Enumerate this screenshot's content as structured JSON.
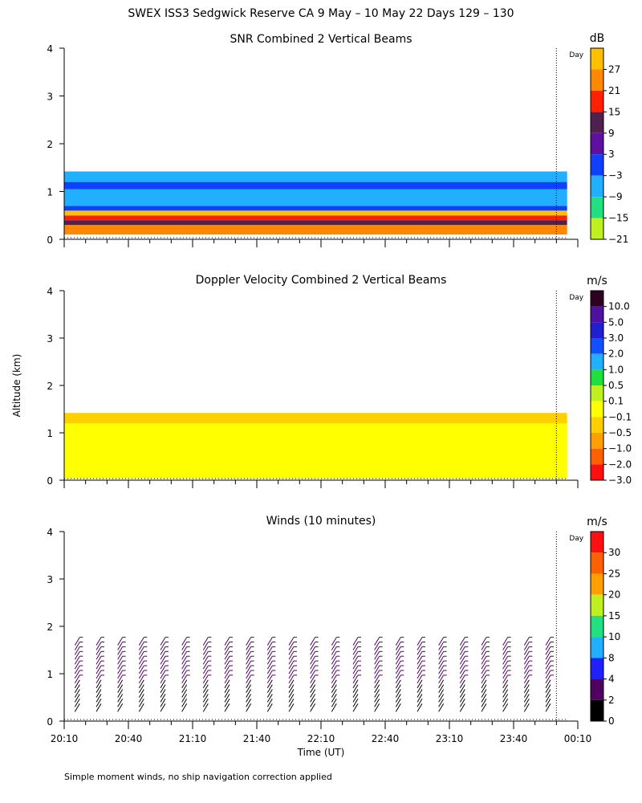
{
  "header": {
    "title": "SWEX ISS3 Sedgwick Reserve CA   9 May – 10 May 22 Days 129 – 130",
    "ylabel": "Altitude (km)",
    "xlabel": "Time (UT)",
    "footnote": "Simple moment winds, no ship navigation correction applied",
    "day_marker": "Day"
  },
  "chart_data": [
    {
      "type": "heatmap",
      "title": "SNR Combined 2 Vertical Beams",
      "ylabel": "Altitude (km)",
      "ylim": [
        0,
        4
      ],
      "yticks": [
        "0",
        "1",
        "2",
        "3",
        "4"
      ],
      "x_range_ut": [
        "20:10",
        "00:10"
      ],
      "day_boundary_ut": "00:00",
      "colorbar": {
        "unit": "dB",
        "labels": [
          "27",
          "21",
          "15",
          "9",
          "3",
          "−3",
          "−9",
          "−15",
          "−21"
        ],
        "colors": [
          "#ffc000",
          "#ff8800",
          "#ff2000",
          "#502050",
          "#6010a0",
          "#1040ff",
          "#20b0ff",
          "#20e080",
          "#c0f020"
        ]
      },
      "layers": [
        {
          "from_km": 0.1,
          "to_km": 0.3,
          "color": "#ff8800"
        },
        {
          "from_km": 0.3,
          "to_km": 0.4,
          "color": "#502050"
        },
        {
          "from_km": 0.4,
          "to_km": 0.5,
          "color": "#ff2000"
        },
        {
          "from_km": 0.5,
          "to_km": 0.6,
          "color": "#ffc000"
        },
        {
          "from_km": 0.6,
          "to_km": 0.7,
          "color": "#1040ff"
        },
        {
          "from_km": 0.7,
          "to_km": 1.05,
          "color": "#20b0ff"
        },
        {
          "from_km": 1.05,
          "to_km": 1.2,
          "color": "#1040ff"
        },
        {
          "from_km": 1.2,
          "to_km": 1.42,
          "color": "#20b0ff"
        }
      ]
    },
    {
      "type": "heatmap",
      "title": "Doppler Velocity Combined 2 Vertical Beams",
      "ylabel": "Altitude (km)",
      "ylim": [
        0,
        4
      ],
      "yticks": [
        "0",
        "1",
        "2",
        "3",
        "4"
      ],
      "x_range_ut": [
        "20:10",
        "00:10"
      ],
      "day_boundary_ut": "00:00",
      "colorbar": {
        "unit": "m/s",
        "labels": [
          "10.0",
          "5.0",
          "3.0",
          "2.0",
          "1.0",
          "0.5",
          "0.1",
          "−0.1",
          "−0.5",
          "−1.0",
          "−2.0",
          "−3.0"
        ],
        "colors": [
          "#300020",
          "#5010a0",
          "#2020d0",
          "#1050ff",
          "#20b0ff",
          "#20e040",
          "#c0f020",
          "#ffff00",
          "#ffd000",
          "#ffa000",
          "#ff6000",
          "#ff1010"
        ]
      },
      "layers": [
        {
          "from_km": 0.05,
          "to_km": 1.2,
          "color": "#ffff00"
        },
        {
          "from_km": 1.2,
          "to_km": 1.42,
          "color": "#ffd000"
        }
      ]
    },
    {
      "type": "barbs",
      "title": "Winds (10 minutes)",
      "ylabel": "Altitude (km)",
      "xlabel": "Time (UT)",
      "ylim": [
        0,
        4
      ],
      "yticks": [
        "0",
        "1",
        "2",
        "3",
        "4"
      ],
      "xticks": [
        "20:10",
        "20:40",
        "21:10",
        "21:40",
        "22:10",
        "22:40",
        "23:10",
        "23:40",
        "00:10"
      ],
      "day_boundary_ut": "00:00",
      "profile_interval_min": 10,
      "profile_top_km": 1.6,
      "colorbar": {
        "unit": "m/s",
        "labels": [
          "30",
          "25",
          "20",
          "15",
          "10",
          "8",
          "4",
          "2",
          "0"
        ],
        "colors": [
          "#ff1010",
          "#ff6000",
          "#ffa000",
          "#c0f020",
          "#20e080",
          "#20b0ff",
          "#2020ff",
          "#500060",
          "#000000"
        ]
      }
    }
  ]
}
